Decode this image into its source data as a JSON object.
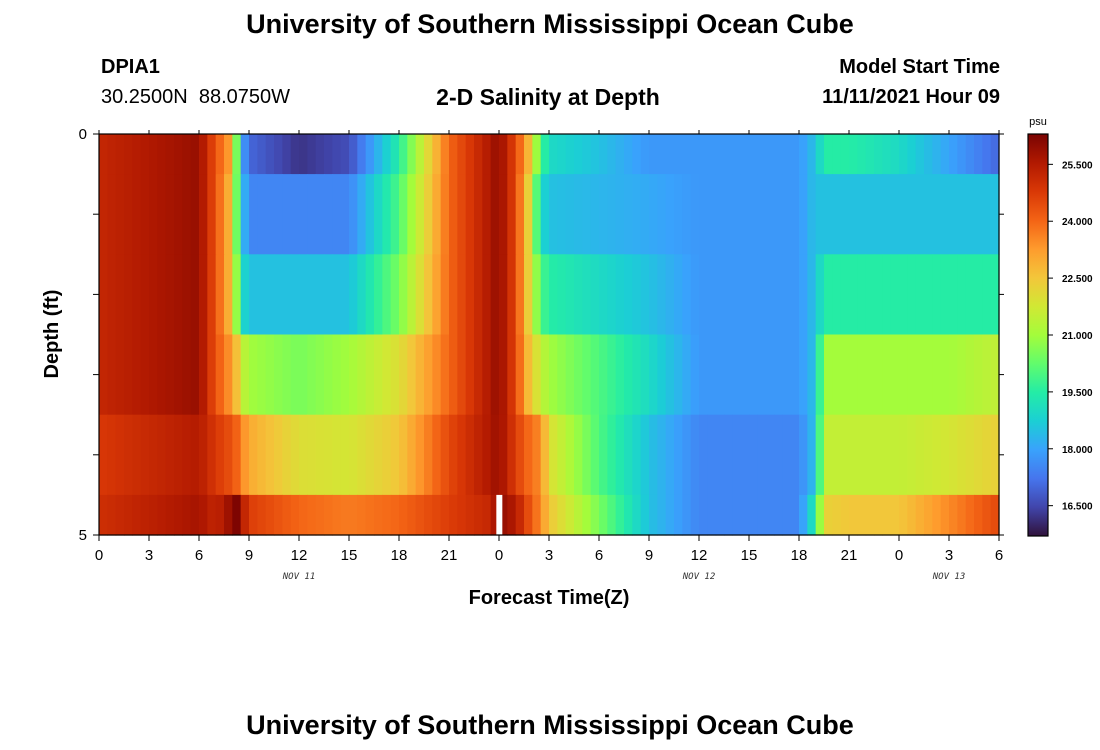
{
  "page_title": "University of Southern Mississippi Ocean Cube",
  "footer_title": "University of Southern Mississippi Ocean Cube",
  "station": {
    "id": "DPIA1",
    "coords": "30.2500N  88.0750W"
  },
  "model": {
    "label": "Model Start Time",
    "time": "11/11/2021 Hour 09"
  },
  "chart_data": {
    "type": "heatmap",
    "title": "2-D Salinity at Depth",
    "xlabel": "Forecast Time(Z)",
    "ylabel": "Depth (ft)",
    "x_tick_labels": [
      "0",
      "3",
      "6",
      "9",
      "12",
      "15",
      "18",
      "21",
      "0",
      "3",
      "6",
      "9",
      "12",
      "15",
      "18",
      "21",
      "0",
      "3",
      "6"
    ],
    "date_labels": [
      {
        "label": "NOV 11",
        "at_tick": 4
      },
      {
        "label": "NOV 12",
        "at_tick": 12
      },
      {
        "label": "NOV 13",
        "at_tick": 17
      }
    ],
    "y_tick_labels": [
      "0",
      "5"
    ],
    "ylim": [
      0,
      5
    ],
    "colorbar": {
      "unit": "psu",
      "labels": [
        "25.500",
        "24.000",
        "22.500",
        "21.000",
        "19.500",
        "18.000",
        "16.500"
      ],
      "range": [
        15.7,
        26.3
      ],
      "colors": [
        "#30123b",
        "#4145ab",
        "#4675ed",
        "#39a2fc",
        "#1bcfd4",
        "#24eca6",
        "#61fc6c",
        "#a4fc3b",
        "#d1e834",
        "#f3c63a",
        "#fe9b2d",
        "#f36315",
        "#d93806",
        "#b11901",
        "#7a0402"
      ]
    },
    "hours": [
      0,
      6,
      7,
      8,
      8.3,
      8.6,
      9,
      12,
      15,
      18,
      21,
      23.5,
      24,
      25,
      25.7,
      26.5,
      27,
      30,
      33,
      36,
      40,
      42,
      43,
      43.5,
      44,
      45,
      48,
      51,
      54
    ],
    "layers": [
      {
        "depth": "0.0-0.5",
        "values": [
          25.2,
          25.9,
          24.3,
          23,
          20,
          18,
          17,
          16.2,
          16.6,
          19.5,
          24,
          25.6,
          26,
          24.5,
          23,
          20,
          19,
          18.5,
          17.8,
          17.8,
          17.8,
          17.8,
          18.5,
          19.5,
          19.5,
          19.5,
          19,
          18,
          17
        ]
      },
      {
        "depth": "0.5-1.5",
        "values": [
          25.2,
          25.9,
          24.3,
          22.5,
          20,
          18.5,
          17.5,
          17.5,
          17.5,
          20,
          24,
          25.6,
          26,
          24.5,
          22.5,
          19,
          18.5,
          18.3,
          18.1,
          17.8,
          17.8,
          17.8,
          18.5,
          18.5,
          18.5,
          18.5,
          18.5,
          18.5,
          18.5
        ]
      },
      {
        "depth": "1.5-2.5",
        "values": [
          25.2,
          25.9,
          24.3,
          22.5,
          20.5,
          19,
          18.5,
          18.5,
          18.5,
          20.5,
          24,
          25.6,
          26,
          24.5,
          22.5,
          20,
          19.5,
          19,
          18.5,
          17.8,
          17.8,
          17.8,
          18.5,
          19.5,
          19.5,
          19.5,
          19.5,
          19.5,
          19.5
        ]
      },
      {
        "depth": "2.5-3.5",
        "values": [
          25.2,
          25.9,
          24.3,
          23.2,
          22.5,
          21.5,
          21,
          20.5,
          21,
          22,
          24,
          25.6,
          26,
          24.5,
          22.8,
          21.5,
          21,
          20,
          19,
          17.8,
          17.8,
          17.8,
          18.5,
          21,
          21,
          21,
          21,
          21,
          21.5
        ]
      },
      {
        "depth": "3.5-4.5",
        "values": [
          24.8,
          25.5,
          24.8,
          24.3,
          24,
          23.5,
          23,
          22,
          21.8,
          22.5,
          24.5,
          25.6,
          25.9,
          24.7,
          24,
          23.5,
          22,
          20,
          18.5,
          17.5,
          17.5,
          17.5,
          18.5,
          21.5,
          21.5,
          21.5,
          21.5,
          21.8,
          22.3
        ]
      },
      {
        "depth": "4.5-5.0",
        "values": [
          25,
          25.7,
          25.2,
          26,
          26.3,
          25.5,
          24.7,
          24,
          23.7,
          24,
          24.7,
          25.2,
          26,
          25.5,
          24.5,
          23.5,
          22.5,
          20.5,
          18.5,
          17.5,
          17.5,
          17.5,
          19.5,
          22.3,
          22.3,
          22.5,
          22.5,
          23.5,
          24.5
        ]
      }
    ]
  }
}
